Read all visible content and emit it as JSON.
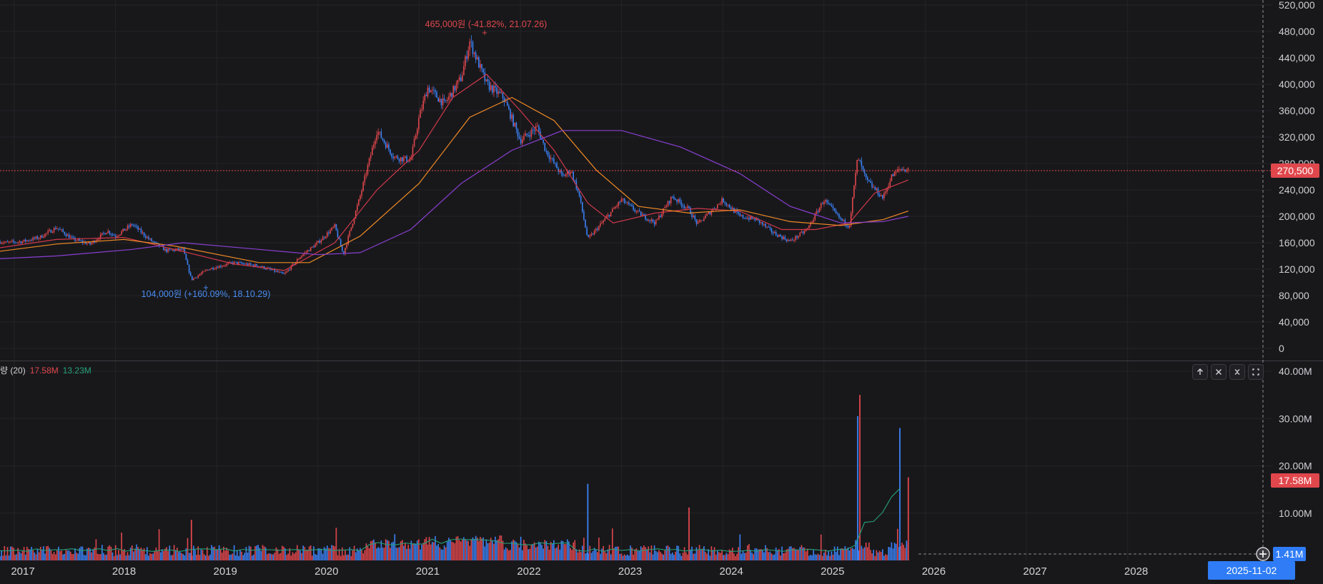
{
  "price_axis": {
    "ticks": [
      "520,000",
      "480,000",
      "440,000",
      "400,000",
      "360,000",
      "320,000",
      "280,000",
      "240,000",
      "200,000",
      "160,000",
      "120,000",
      "80,000",
      "40,000",
      "0"
    ]
  },
  "volume_axis": {
    "ticks": [
      "40.00M",
      "30.00M",
      "20.00M",
      "10.00M"
    ]
  },
  "time_axis": {
    "years": [
      "2017",
      "2018",
      "2019",
      "2020",
      "2021",
      "2022",
      "2023",
      "2024",
      "2025",
      "2026",
      "2027",
      "2028"
    ]
  },
  "current_price_tag": "270,500",
  "volume_tag": "17.58M",
  "cursor_volume_tag": "1.41M",
  "cursor_date_tag": "2025-11-02",
  "annotations": {
    "high": "465,000원 (-41.82%, 21.07.26)",
    "low": "104,000원 (+160.09%, 18.10.29)"
  },
  "volume_legend": {
    "label": "량 (20)",
    "value1": "17.58M",
    "value2": "13.23M"
  },
  "pane_buttons": {
    "up_icon": "arrow-up-icon",
    "close_icon": "close-icon",
    "collapse_icon": "collapse-icon",
    "maximize_icon": "maximize-icon"
  },
  "colors": {
    "background": "#18181b",
    "up": "#e0474c",
    "down": "#3b82f6",
    "ma_short": "#d0384a",
    "ma_mid": "#f08a24",
    "ma_long": "#8a3fd0",
    "volume_ma": "#26a17a",
    "date_tag": "#2f7cf6"
  },
  "chart_data": {
    "type": "candlestick",
    "x_range": [
      "2016-10",
      "2028-12"
    ],
    "y_range": [
      0,
      520000
    ],
    "y_unit": "원",
    "price_path": [
      [
        "2016-10",
        165000
      ],
      [
        "2016-12",
        160000
      ],
      [
        "2017-02",
        162000
      ],
      [
        "2017-04",
        168000
      ],
      [
        "2017-06",
        183000
      ],
      [
        "2017-08",
        165000
      ],
      [
        "2017-10",
        158000
      ],
      [
        "2017-12",
        178000
      ],
      [
        "2018-01",
        170000
      ],
      [
        "2018-03",
        188000
      ],
      [
        "2018-05",
        165000
      ],
      [
        "2018-07",
        148000
      ],
      [
        "2018-09",
        150000
      ],
      [
        "2018-10",
        104000
      ],
      [
        "2018-12",
        120000
      ],
      [
        "2019-03",
        130000
      ],
      [
        "2019-06",
        125000
      ],
      [
        "2019-09",
        112000
      ],
      [
        "2019-11",
        140000
      ],
      [
        "2020-01",
        160000
      ],
      [
        "2020-03",
        185000
      ],
      [
        "2020-04",
        142000
      ],
      [
        "2020-06",
        230000
      ],
      [
        "2020-08",
        330000
      ],
      [
        "2020-10",
        290000
      ],
      [
        "2020-12",
        285000
      ],
      [
        "2021-01",
        350000
      ],
      [
        "2021-02",
        395000
      ],
      [
        "2021-04",
        370000
      ],
      [
        "2021-06",
        410000
      ],
      [
        "2021-07",
        465000
      ],
      [
        "2021-09",
        400000
      ],
      [
        "2021-11",
        380000
      ],
      [
        "2022-01",
        315000
      ],
      [
        "2022-03",
        335000
      ],
      [
        "2022-04",
        300000
      ],
      [
        "2022-06",
        260000
      ],
      [
        "2022-07",
        270000
      ],
      [
        "2022-08",
        230000
      ],
      [
        "2022-09",
        165000
      ],
      [
        "2022-11",
        195000
      ],
      [
        "2023-01",
        225000
      ],
      [
        "2023-03",
        205000
      ],
      [
        "2023-05",
        190000
      ],
      [
        "2023-07",
        230000
      ],
      [
        "2023-09",
        210000
      ],
      [
        "2023-10",
        188000
      ],
      [
        "2024-01",
        225000
      ],
      [
        "2024-03",
        200000
      ],
      [
        "2024-05",
        195000
      ],
      [
        "2024-07",
        175000
      ],
      [
        "2024-09",
        162000
      ],
      [
        "2024-11",
        180000
      ],
      [
        "2025-01",
        225000
      ],
      [
        "2025-03",
        195000
      ],
      [
        "2025-04",
        185000
      ],
      [
        "2025-05",
        290000
      ],
      [
        "2025-06",
        255000
      ],
      [
        "2025-08",
        228000
      ],
      [
        "2025-09",
        260000
      ],
      [
        "2025-10",
        272000
      ],
      [
        "2025-11",
        270500
      ]
    ],
    "moving_averages": [
      {
        "color": "#d0384a",
        "points": [
          [
            "2016-10",
            150000
          ],
          [
            "2017-06",
            165000
          ],
          [
            "2018-02",
            168000
          ],
          [
            "2018-08",
            150000
          ],
          [
            "2019-03",
            128000
          ],
          [
            "2019-09",
            118000
          ],
          [
            "2020-03",
            160000
          ],
          [
            "2020-08",
            240000
          ],
          [
            "2021-01",
            300000
          ],
          [
            "2021-05",
            380000
          ],
          [
            "2021-09",
            415000
          ],
          [
            "2022-01",
            360000
          ],
          [
            "2022-05",
            300000
          ],
          [
            "2022-09",
            220000
          ],
          [
            "2022-12",
            190000
          ],
          [
            "2023-05",
            205000
          ],
          [
            "2023-10",
            212000
          ],
          [
            "2024-03",
            208000
          ],
          [
            "2024-08",
            180000
          ],
          [
            "2024-12",
            180000
          ],
          [
            "2025-04",
            190000
          ],
          [
            "2025-07",
            235000
          ],
          [
            "2025-11",
            255000
          ]
        ]
      },
      {
        "color": "#f08a24",
        "points": [
          [
            "2016-10",
            145000
          ],
          [
            "2017-06",
            158000
          ],
          [
            "2018-02",
            165000
          ],
          [
            "2018-08",
            155000
          ],
          [
            "2019-06",
            130000
          ],
          [
            "2019-12",
            130000
          ],
          [
            "2020-06",
            170000
          ],
          [
            "2021-01",
            250000
          ],
          [
            "2021-07",
            350000
          ],
          [
            "2021-12",
            380000
          ],
          [
            "2022-05",
            345000
          ],
          [
            "2022-10",
            270000
          ],
          [
            "2023-03",
            215000
          ],
          [
            "2023-09",
            205000
          ],
          [
            "2024-03",
            210000
          ],
          [
            "2024-09",
            192000
          ],
          [
            "2025-03",
            186000
          ],
          [
            "2025-08",
            195000
          ],
          [
            "2025-11",
            208000
          ]
        ]
      },
      {
        "color": "#8a3fd0",
        "points": [
          [
            "2016-10",
            135000
          ],
          [
            "2017-06",
            140000
          ],
          [
            "2018-03",
            150000
          ],
          [
            "2018-09",
            160000
          ],
          [
            "2019-06",
            150000
          ],
          [
            "2020-01",
            142000
          ],
          [
            "2020-06",
            145000
          ],
          [
            "2020-12",
            180000
          ],
          [
            "2021-06",
            250000
          ],
          [
            "2021-12",
            300000
          ],
          [
            "2022-06",
            330000
          ],
          [
            "2023-01",
            330000
          ],
          [
            "2023-08",
            305000
          ],
          [
            "2024-03",
            265000
          ],
          [
            "2024-09",
            215000
          ],
          [
            "2025-03",
            190000
          ],
          [
            "2025-08",
            192000
          ],
          [
            "2025-11",
            200000
          ]
        ]
      }
    ],
    "volume": {
      "unit": "M",
      "y_range": [
        0,
        40
      ],
      "spikes": [
        {
          "date": "2018-10",
          "value": 8.6
        },
        {
          "date": "2022-09",
          "value": 16.2
        },
        {
          "date": "2023-09",
          "value": 11.2
        },
        {
          "date": "2025-05",
          "value": 30.5
        },
        {
          "date": "2025-05",
          "value": 35.0
        },
        {
          "date": "2025-10",
          "value": 28.0
        },
        {
          "date": "2025-11",
          "value": 17.58
        }
      ],
      "ma_values": {
        "ma1": 17.58,
        "ma2": 13.23
      }
    }
  }
}
